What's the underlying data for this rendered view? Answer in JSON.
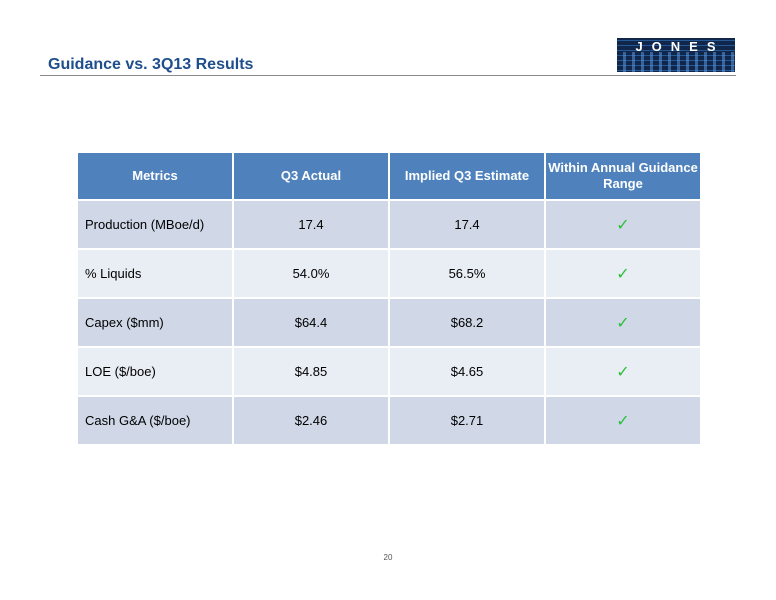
{
  "header": {
    "title": "Guidance vs. 3Q13 Results",
    "logo_text": "JONES"
  },
  "table": {
    "columns": [
      "Metrics",
      "Q3 Actual",
      "Implied Q3 Estimate",
      "Within Annual Guidance Range"
    ],
    "rows": [
      {
        "metric": "Production (MBoe/d)",
        "actual": "17.4",
        "estimate": "17.4",
        "within": "✓"
      },
      {
        "metric": "% Liquids",
        "actual": "54.0%",
        "estimate": "56.5%",
        "within": "✓"
      },
      {
        "metric": "Capex ($mm)",
        "actual": "$64.4",
        "estimate": "$68.2",
        "within": "✓"
      },
      {
        "metric": "LOE ($/boe)",
        "actual": "$4.85",
        "estimate": "$4.65",
        "within": "✓"
      },
      {
        "metric": "Cash G&A ($/boe)",
        "actual": "$2.46",
        "estimate": "$2.71",
        "within": "✓"
      }
    ]
  },
  "footer": {
    "page_number": "20"
  },
  "colors": {
    "title": "#1f4e8c",
    "header_fill": "#4f81bd",
    "row_dark": "#d0d8e8",
    "row_light": "#e9edf4",
    "check": "#2bbf3a"
  }
}
